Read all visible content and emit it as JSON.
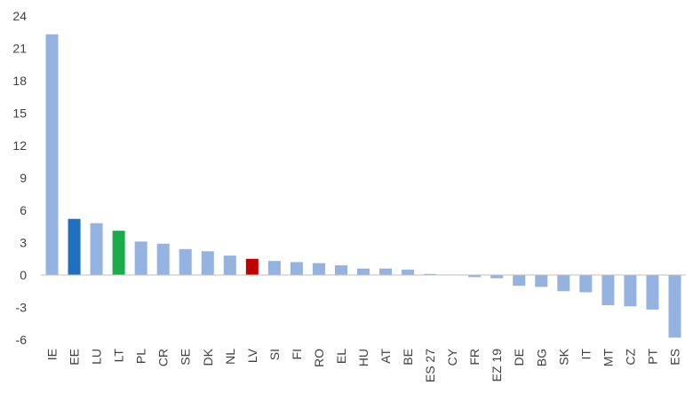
{
  "chart_data": {
    "type": "bar",
    "title": "",
    "xlabel": "",
    "ylabel": "",
    "ylim": [
      -6,
      24
    ],
    "yticks": [
      24,
      21,
      18,
      15,
      12,
      9,
      6,
      3,
      0,
      -3,
      -6
    ],
    "grid": false,
    "legend": "none",
    "categories": [
      "IE",
      "EE",
      "LU",
      "LT",
      "PL",
      "CR",
      "SE",
      "DK",
      "NL",
      "LV",
      "SI",
      "FI",
      "RO",
      "EL",
      "HU",
      "AT",
      "BE",
      "ES 27",
      "CY",
      "FR",
      "EZ 19",
      "DE",
      "BG",
      "SK",
      "IT",
      "MT",
      "CZ",
      "PT",
      "ES"
    ],
    "values": [
      22.3,
      5.2,
      4.8,
      4.1,
      3.1,
      2.9,
      2.4,
      2.2,
      1.8,
      1.5,
      1.3,
      1.2,
      1.1,
      0.9,
      0.6,
      0.6,
      0.5,
      0.1,
      0.0,
      -0.2,
      -0.3,
      -1.0,
      -1.1,
      -1.5,
      -1.6,
      -2.8,
      -2.9,
      -3.2,
      -5.8
    ],
    "colors": {
      "default": "#95b3e0",
      "EE": "#1f6fbf",
      "LT": "#1aab4b",
      "LV": "#c00000",
      "axis": "#bfbfbf",
      "text": "#404040"
    }
  }
}
